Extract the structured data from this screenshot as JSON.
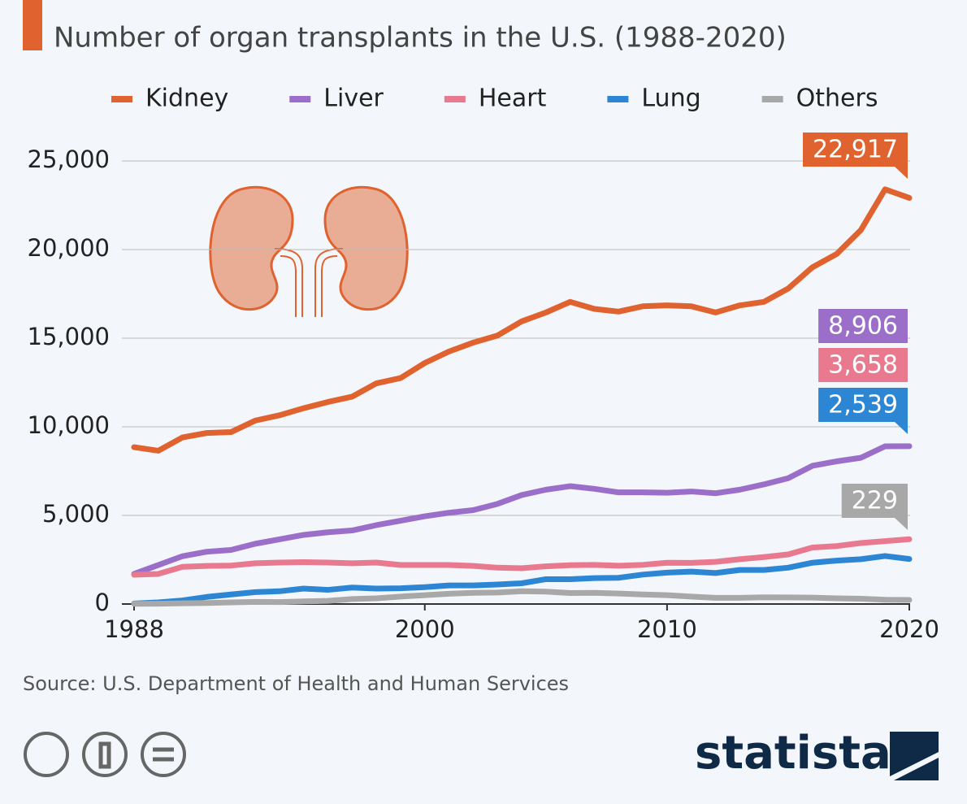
{
  "chart_data": {
    "type": "line",
    "title": "Number of organ transplants in the U.S. (1988-2020)",
    "source": "Source: U.S. Department of Health and Human Services",
    "x": [
      1988,
      1989,
      1990,
      1991,
      1992,
      1993,
      1994,
      1995,
      1996,
      1997,
      1998,
      1999,
      2000,
      2001,
      2002,
      2003,
      2004,
      2005,
      2006,
      2007,
      2008,
      2009,
      2010,
      2011,
      2012,
      2013,
      2014,
      2015,
      2016,
      2017,
      2018,
      2019,
      2020
    ],
    "xlim": [
      1988,
      2020
    ],
    "xticks": [
      1988,
      2000,
      2010,
      2020
    ],
    "ylim": [
      0,
      25000
    ],
    "yticks": [
      0,
      {
        "value": 5000,
        "label": "5,000"
      },
      {
        "value": 10000,
        "label": "10,000"
      },
      {
        "value": 15000,
        "label": "15,000"
      },
      {
        "value": 20000,
        "label": "20,000"
      },
      {
        "value": 25000,
        "label": "25,000"
      }
    ],
    "grid": true,
    "series": [
      {
        "name": "Kidney",
        "color": "#e0622f",
        "values": [
          8850,
          8650,
          9400,
          9650,
          9700,
          10350,
          10650,
          11050,
          11400,
          11700,
          12450,
          12750,
          13600,
          14250,
          14750,
          15150,
          15950,
          16450,
          17050,
          16650,
          16500,
          16800,
          16850,
          16800,
          16450,
          16850,
          17050,
          17800,
          19000,
          19750,
          21100,
          23400,
          22917
        ],
        "value_labels": [
          null,
          null,
          null,
          null,
          null,
          null,
          null,
          null,
          null,
          null,
          null,
          null,
          null,
          null,
          null,
          null,
          null,
          null,
          null,
          null,
          null,
          null,
          null,
          null,
          null,
          null,
          null,
          null,
          null,
          null,
          null,
          null,
          "22,917"
        ]
      },
      {
        "name": "Liver",
        "color": "#9b6fc9",
        "values": [
          1700,
          2200,
          2700,
          2950,
          3050,
          3400,
          3650,
          3900,
          4050,
          4150,
          4450,
          4700,
          4950,
          5150,
          5300,
          5650,
          6150,
          6450,
          6650,
          6500,
          6300,
          6300,
          6280,
          6350,
          6250,
          6450,
          6750,
          7100,
          7800,
          8050,
          8250,
          8900,
          8906
        ],
        "value_labels": [
          null,
          null,
          null,
          null,
          null,
          null,
          null,
          null,
          null,
          null,
          null,
          null,
          null,
          null,
          null,
          null,
          null,
          null,
          null,
          null,
          null,
          null,
          null,
          null,
          null,
          null,
          null,
          null,
          null,
          null,
          null,
          null,
          "8,906"
        ]
      },
      {
        "name": "Heart",
        "color": "#e8798f",
        "values": [
          1650,
          1700,
          2100,
          2150,
          2170,
          2300,
          2340,
          2360,
          2340,
          2300,
          2340,
          2200,
          2200,
          2200,
          2150,
          2050,
          2020,
          2130,
          2190,
          2210,
          2160,
          2210,
          2330,
          2320,
          2380,
          2530,
          2650,
          2800,
          3190,
          3270,
          3440,
          3550,
          3658
        ],
        "value_labels": [
          null,
          null,
          null,
          null,
          null,
          null,
          null,
          null,
          null,
          null,
          null,
          null,
          null,
          null,
          null,
          null,
          null,
          null,
          null,
          null,
          null,
          null,
          null,
          null,
          null,
          null,
          null,
          null,
          null,
          null,
          null,
          null,
          "3,658"
        ]
      },
      {
        "name": "Lung",
        "color": "#2d86d4",
        "values": [
          30,
          90,
          200,
          400,
          540,
          670,
          720,
          870,
          800,
          930,
          870,
          890,
          950,
          1050,
          1050,
          1100,
          1170,
          1400,
          1400,
          1460,
          1480,
          1660,
          1770,
          1830,
          1750,
          1920,
          1920,
          2050,
          2330,
          2450,
          2530,
          2710,
          2539
        ],
        "value_labels": [
          null,
          null,
          null,
          null,
          null,
          null,
          null,
          null,
          null,
          null,
          null,
          null,
          null,
          null,
          null,
          null,
          null,
          null,
          null,
          null,
          null,
          null,
          null,
          null,
          null,
          null,
          null,
          null,
          null,
          null,
          null,
          null,
          "2,539"
        ]
      },
      {
        "name": "Others",
        "color": "#a8a8a8",
        "values": [
          10,
          20,
          40,
          60,
          90,
          120,
          110,
          150,
          180,
          280,
          320,
          420,
          500,
          580,
          630,
          650,
          720,
          700,
          620,
          630,
          590,
          540,
          500,
          420,
          350,
          350,
          380,
          370,
          360,
          320,
          300,
          240,
          229
        ]
      }
    ]
  },
  "logo": "statista"
}
